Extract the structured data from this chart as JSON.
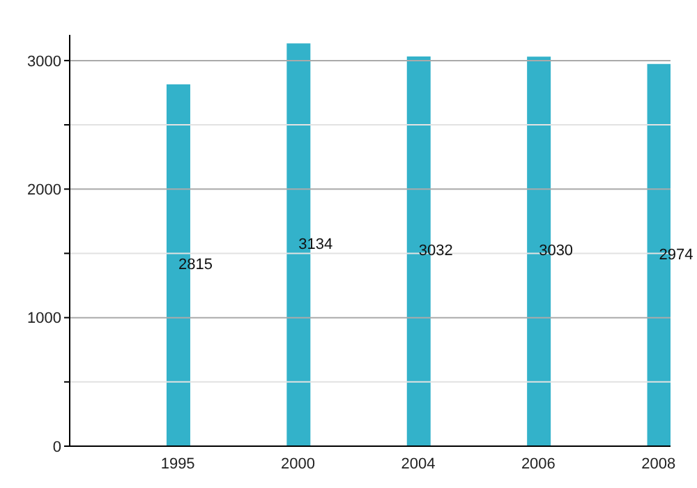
{
  "chart_data": {
    "type": "bar",
    "categories": [
      "1995",
      "2000",
      "2004",
      "2006",
      "2008"
    ],
    "values": [
      2815,
      3134,
      3032,
      3030,
      2974
    ],
    "color": "#33b2ca",
    "ylim": [
      0,
      3200
    ],
    "yticks": [
      0,
      {
        "value": 500,
        "label": null
      },
      1000,
      {
        "value": 1500,
        "label": null
      },
      2000,
      {
        "value": 2500,
        "label": null
      },
      3000
    ],
    "grid": "y",
    "data_labels": true
  }
}
